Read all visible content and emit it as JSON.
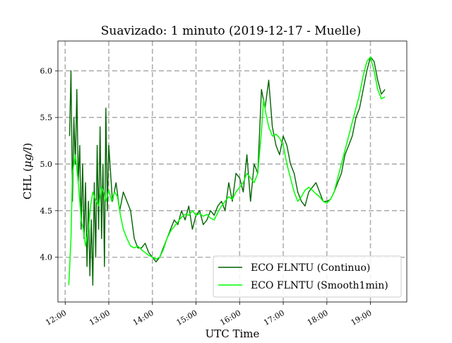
{
  "chart_data": {
    "type": "line",
    "title": "Suavizado: 1 minuto (2019-12-17 - Muelle)",
    "xlabel": "UTC Time",
    "ylabel_prefix": "CHL (",
    "ylabel_unit": "μg/l",
    "ylabel_suffix": ")",
    "xlim": [
      "11:50",
      "19:50"
    ],
    "ylim": [
      3.52,
      6.32
    ],
    "grid": true,
    "legend_position": "lower-right",
    "x_ticks": [
      "12:00",
      "13:00",
      "14:00",
      "15:00",
      "16:00",
      "17:00",
      "18:00",
      "19:00"
    ],
    "y_ticks": [
      "4.0",
      "4.5",
      "5.0",
      "5.5",
      "6.0"
    ],
    "series": [
      {
        "name": "ECO FLNTU (Continuo)",
        "color": "#006400",
        "x": [
          "12:06",
          "12:08",
          "12:10",
          "12:12",
          "12:14",
          "12:16",
          "12:18",
          "12:20",
          "12:22",
          "12:24",
          "12:26",
          "12:28",
          "12:30",
          "12:32",
          "12:34",
          "12:36",
          "12:38",
          "12:40",
          "12:42",
          "12:44",
          "12:46",
          "12:48",
          "12:50",
          "12:52",
          "12:54",
          "12:56",
          "12:58",
          "13:00",
          "13:05",
          "13:10",
          "13:15",
          "13:20",
          "13:25",
          "13:30",
          "13:35",
          "13:40",
          "13:45",
          "13:50",
          "13:55",
          "14:00",
          "14:05",
          "14:10",
          "14:15",
          "14:20",
          "14:25",
          "14:30",
          "14:35",
          "14:40",
          "14:45",
          "14:50",
          "14:55",
          "15:00",
          "15:05",
          "15:10",
          "15:15",
          "15:20",
          "15:25",
          "15:30",
          "15:35",
          "15:40",
          "15:45",
          "15:50",
          "15:55",
          "16:00",
          "16:05",
          "16:10",
          "16:15",
          "16:20",
          "16:25",
          "16:30",
          "16:35",
          "16:40",
          "16:45",
          "16:50",
          "16:55",
          "17:00",
          "17:05",
          "17:10",
          "17:15",
          "17:20",
          "17:25",
          "17:30",
          "17:35",
          "17:40",
          "17:45",
          "17:50",
          "17:55",
          "18:00",
          "18:05",
          "18:10",
          "18:15",
          "18:20",
          "18:25",
          "18:30",
          "18:35",
          "18:40",
          "18:45",
          "18:50",
          "18:55",
          "19:00",
          "19:05",
          "19:10",
          "19:15",
          "19:20"
        ],
        "values": [
          5.3,
          6.0,
          4.6,
          5.5,
          5.0,
          5.8,
          4.8,
          5.2,
          4.3,
          5.0,
          4.2,
          4.8,
          3.9,
          4.6,
          3.8,
          4.4,
          3.7,
          4.8,
          4.0,
          5.2,
          4.3,
          5.4,
          4.2,
          5.0,
          3.9,
          5.6,
          4.5,
          5.2,
          4.6,
          4.8,
          4.5,
          4.7,
          4.6,
          4.5,
          4.2,
          4.1,
          4.1,
          4.15,
          4.05,
          4.0,
          3.95,
          4.0,
          4.1,
          4.2,
          4.3,
          4.4,
          4.35,
          4.5,
          4.4,
          4.55,
          4.3,
          4.45,
          4.5,
          4.35,
          4.4,
          4.5,
          4.45,
          4.55,
          4.6,
          4.5,
          4.8,
          4.6,
          4.9,
          4.85,
          4.7,
          5.1,
          4.6,
          5.0,
          4.9,
          5.8,
          5.6,
          5.9,
          5.4,
          5.2,
          5.1,
          5.3,
          5.2,
          5.0,
          4.9,
          4.7,
          4.6,
          4.55,
          4.7,
          4.75,
          4.8,
          4.7,
          4.6,
          4.6,
          4.62,
          4.7,
          4.8,
          4.9,
          5.1,
          5.2,
          5.3,
          5.5,
          5.6,
          5.8,
          6.0,
          6.15,
          6.1,
          5.9,
          5.75,
          5.8
        ]
      },
      {
        "name": "ECO FLNTU (Smooth1min)",
        "color": "#00ff00",
        "x": [
          "12:05",
          "12:08",
          "12:10",
          "12:12",
          "12:14",
          "12:16",
          "12:18",
          "12:20",
          "12:22",
          "12:25",
          "12:28",
          "12:32",
          "12:35",
          "12:38",
          "12:40",
          "12:43",
          "12:46",
          "12:50",
          "12:53",
          "12:56",
          "13:00",
          "13:04",
          "13:08",
          "13:12",
          "13:16",
          "13:20",
          "13:25",
          "13:30",
          "13:35",
          "13:40",
          "13:45",
          "13:50",
          "13:55",
          "14:00",
          "14:05",
          "14:10",
          "14:15",
          "14:20",
          "14:25",
          "14:30",
          "14:35",
          "14:40",
          "14:45",
          "14:50",
          "14:55",
          "15:00",
          "15:05",
          "15:10",
          "15:15",
          "15:20",
          "15:25",
          "15:30",
          "15:35",
          "15:40",
          "15:45",
          "15:50",
          "15:55",
          "16:00",
          "16:05",
          "16:10",
          "16:15",
          "16:20",
          "16:25",
          "16:30",
          "16:33",
          "16:36",
          "16:40",
          "16:45",
          "16:50",
          "16:55",
          "17:00",
          "17:05",
          "17:10",
          "17:15",
          "17:20",
          "17:25",
          "17:30",
          "17:35",
          "17:40",
          "17:45",
          "17:50",
          "17:55",
          "18:00",
          "18:05",
          "18:10",
          "18:15",
          "18:20",
          "18:25",
          "18:30",
          "18:35",
          "18:40",
          "18:45",
          "18:50",
          "18:55",
          "19:00",
          "19:05",
          "19:10",
          "19:15",
          "19:20"
        ],
        "values": [
          3.7,
          4.2,
          4.9,
          5.0,
          5.1,
          4.95,
          4.8,
          4.6,
          4.4,
          4.3,
          4.12,
          4.3,
          4.55,
          4.7,
          4.65,
          4.6,
          4.55,
          4.75,
          4.7,
          4.6,
          4.72,
          4.6,
          4.7,
          4.65,
          4.45,
          4.3,
          4.2,
          4.12,
          4.1,
          4.12,
          4.08,
          4.05,
          4.02,
          4.0,
          3.98,
          4.0,
          4.08,
          4.2,
          4.28,
          4.33,
          4.38,
          4.43,
          4.46,
          4.45,
          4.5,
          4.45,
          4.47,
          4.44,
          4.46,
          4.42,
          4.4,
          4.48,
          4.55,
          4.6,
          4.65,
          4.62,
          4.7,
          4.75,
          4.8,
          4.9,
          4.85,
          4.8,
          4.9,
          5.35,
          5.7,
          5.55,
          5.4,
          5.3,
          5.32,
          5.28,
          5.2,
          5.0,
          4.85,
          4.7,
          4.6,
          4.65,
          4.72,
          4.75,
          4.72,
          4.68,
          4.65,
          4.6,
          4.58,
          4.62,
          4.7,
          4.85,
          5.0,
          5.15,
          5.3,
          5.45,
          5.6,
          5.75,
          5.95,
          6.1,
          6.15,
          6.0,
          5.8,
          5.7,
          5.72
        ]
      }
    ]
  }
}
